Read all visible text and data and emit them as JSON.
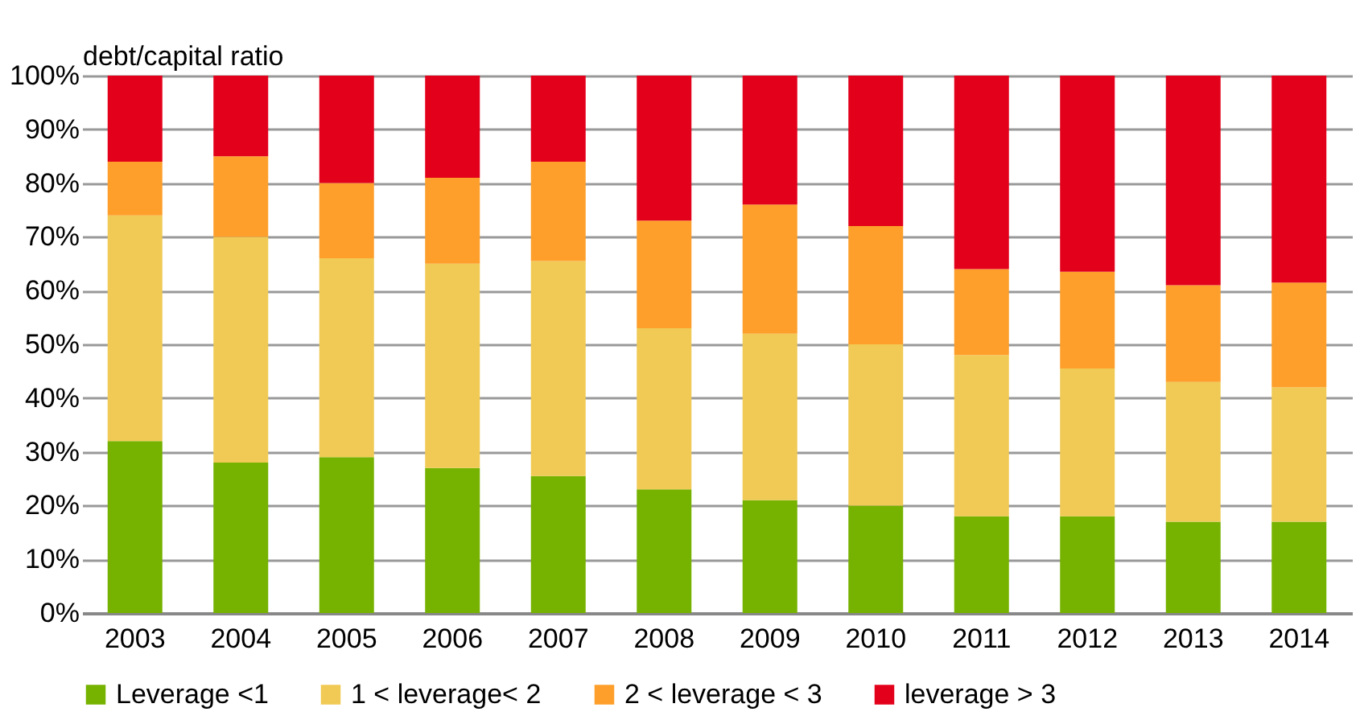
{
  "chart_data": {
    "type": "bar",
    "stacked": true,
    "ylabel": "debt/capital ratio",
    "categories": [
      "2003",
      "2004",
      "2005",
      "2006",
      "2007",
      "2008",
      "2009",
      "2010",
      "2011",
      "2012",
      "2013",
      "2014"
    ],
    "series": [
      {
        "name": "Leverage <1",
        "color": "#76b200",
        "values": [
          32,
          28,
          29,
          27,
          25.5,
          23,
          21,
          20,
          18,
          18,
          17,
          17
        ]
      },
      {
        "name": "1 < leverage< 2",
        "color": "#f0ca54",
        "values": [
          42,
          42,
          37,
          38,
          40,
          30,
          31,
          30,
          30,
          27.5,
          26,
          25
        ]
      },
      {
        "name": "2 < leverage < 3",
        "color": "#fd9f2a",
        "values": [
          10,
          15,
          14,
          16,
          18.5,
          20,
          24,
          22,
          16,
          18,
          18,
          19.5
        ]
      },
      {
        "name": "leverage > 3",
        "color": "#e3001b",
        "values": [
          16,
          15,
          20,
          19,
          16,
          27,
          24,
          28,
          36,
          36.5,
          39,
          38.5
        ]
      }
    ],
    "ylim": [
      0,
      100
    ],
    "yticks": [
      {
        "value": 0,
        "label": "0%"
      },
      {
        "value": 10,
        "label": "10%"
      },
      {
        "value": 20,
        "label": "20%"
      },
      {
        "value": 30,
        "label": "30%"
      },
      {
        "value": 40,
        "label": "40%"
      },
      {
        "value": 50,
        "label": "50%"
      },
      {
        "value": 60,
        "label": "60%"
      },
      {
        "value": 70,
        "label": "70%"
      },
      {
        "value": 80,
        "label": "80%"
      },
      {
        "value": 90,
        "label": "90%"
      },
      {
        "value": 100,
        "label": "100%"
      }
    ],
    "grid": "y",
    "legend": "bottom"
  }
}
